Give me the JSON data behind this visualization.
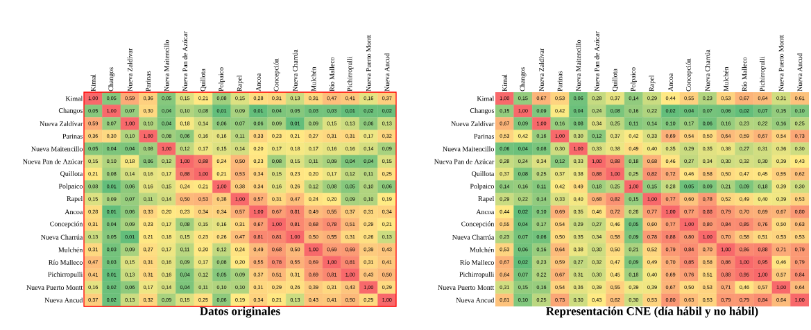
{
  "chart_data": [
    {
      "type": "heatmap",
      "title": "Datos originales",
      "categories": [
        "Kimal",
        "Changos",
        "Nueva Zaldívar",
        "Parinas",
        "Nueva Maitencillo",
        "Nueva Pan de Azúcar",
        "Quillota",
        "Polpaico",
        "Rapel",
        "Ancoa",
        "Concepción",
        "Nueva Charrúa",
        "Mulchén",
        "Río Malleco",
        "Pichirropulli",
        "Nueva Puerto Montt",
        "Nueva Ancud"
      ],
      "y_categories": [
        "Kimal",
        "Changos",
        "Nueva Zaldívar",
        "Parinas",
        "Nueva Maitencillo",
        "Nueva Pan de Azúcar",
        "Quillota",
        "Polpaico",
        "Rapel",
        "Ancoa",
        "Concepción",
        "Nueva Charrúa",
        "Mulchén",
        "Río Malleco",
        "Pichirropulli",
        "Nueva Puerto Montt",
        "Nueva Ancud"
      ],
      "cells": [
        [
          1.0,
          0.05,
          0.59,
          0.36,
          0.05,
          0.15,
          0.21,
          0.08,
          0.15,
          0.28,
          0.31,
          0.13,
          0.31,
          0.47,
          0.41,
          0.16,
          0.37
        ],
        [
          0.05,
          1.0,
          0.07,
          0.3,
          0.04,
          0.1,
          0.08,
          0.01,
          0.09,
          0.01,
          0.04,
          0.05,
          0.03,
          0.03,
          0.01,
          0.02,
          0.02
        ],
        [
          0.59,
          0.07,
          1.0,
          0.1,
          0.04,
          0.18,
          0.14,
          0.06,
          0.07,
          0.06,
          0.09,
          0.01,
          0.09,
          0.15,
          0.13,
          0.06,
          0.13
        ],
        [
          0.36,
          0.3,
          0.1,
          1.0,
          0.08,
          0.06,
          0.16,
          0.16,
          0.11,
          0.33,
          0.23,
          0.21,
          0.27,
          0.31,
          0.31,
          0.17,
          0.32
        ],
        [
          0.05,
          0.04,
          0.04,
          0.08,
          1.0,
          0.12,
          0.17,
          0.15,
          0.14,
          0.2,
          0.17,
          0.18,
          0.17,
          0.16,
          0.16,
          0.14,
          0.09
        ],
        [
          0.15,
          0.1,
          0.18,
          0.06,
          0.12,
          1.0,
          0.88,
          0.24,
          0.5,
          0.23,
          0.08,
          0.15,
          0.11,
          0.09,
          0.04,
          0.04,
          0.15
        ],
        [
          0.21,
          0.08,
          0.14,
          0.16,
          0.17,
          0.88,
          1.0,
          0.21,
          0.53,
          0.34,
          0.15,
          0.23,
          0.2,
          0.17,
          0.12,
          0.11,
          0.25
        ],
        [
          0.08,
          0.01,
          0.06,
          0.16,
          0.15,
          0.24,
          0.21,
          1.0,
          0.38,
          0.34,
          0.16,
          0.26,
          0.12,
          0.08,
          0.05,
          0.1,
          0.06
        ],
        [
          0.15,
          0.09,
          0.07,
          0.11,
          0.14,
          0.5,
          0.53,
          0.38,
          1.0,
          0.57,
          0.31,
          0.47,
          0.24,
          0.2,
          0.09,
          0.1,
          0.19
        ],
        [
          0.28,
          0.01,
          0.06,
          0.33,
          0.2,
          0.23,
          0.34,
          0.34,
          0.57,
          1.0,
          0.67,
          0.81,
          0.49,
          0.55,
          0.37,
          0.31,
          0.34
        ],
        [
          0.31,
          0.04,
          0.09,
          0.23,
          0.17,
          0.08,
          0.15,
          0.16,
          0.31,
          0.67,
          1.0,
          0.81,
          0.68,
          0.78,
          0.51,
          0.29,
          0.21
        ],
        [
          0.13,
          0.05,
          0.01,
          0.21,
          0.18,
          0.15,
          0.23,
          0.26,
          0.47,
          0.81,
          0.81,
          1.0,
          0.5,
          0.55,
          0.31,
          0.26,
          0.13
        ],
        [
          0.31,
          0.03,
          0.09,
          0.27,
          0.17,
          0.11,
          0.2,
          0.12,
          0.24,
          0.49,
          0.68,
          0.5,
          1.0,
          0.69,
          0.69,
          0.39,
          0.43
        ],
        [
          0.47,
          0.03,
          0.15,
          0.31,
          0.16,
          0.09,
          0.17,
          0.08,
          0.2,
          0.55,
          0.78,
          0.55,
          0.69,
          1.0,
          0.81,
          0.31,
          0.41
        ],
        [
          0.41,
          0.01,
          0.13,
          0.31,
          0.16,
          0.04,
          0.12,
          0.05,
          0.09,
          0.37,
          0.51,
          0.31,
          0.69,
          0.81,
          1.0,
          0.43,
          0.5
        ],
        [
          0.16,
          0.02,
          0.06,
          0.17,
          0.14,
          0.04,
          0.11,
          0.1,
          0.1,
          0.31,
          0.29,
          0.26,
          0.39,
          0.31,
          0.43,
          1.0,
          0.29
        ],
        [
          0.37,
          0.02,
          0.13,
          0.32,
          0.09,
          0.15,
          0.25,
          0.06,
          0.19,
          0.34,
          0.21,
          0.13,
          0.43,
          0.41,
          0.5,
          0.29,
          1.0
        ]
      ],
      "cell_labels": [
        [
          "1,00",
          "0,05",
          "0,59",
          "0,36",
          "0,05",
          "0,15",
          "0,21",
          "0,08",
          "0,15",
          "0,28",
          "0,31",
          "0,13",
          "0,31",
          "0,47",
          "0,41",
          "0,16",
          "0,37"
        ],
        [
          "0,05",
          "1,00",
          "0,07",
          "0,30",
          "0,04",
          "0,10",
          "0,08",
          "0,01",
          "0,09",
          "0,01",
          "0,04",
          "0,05",
          "0,03",
          "0,03",
          "0,01",
          "0,02",
          "0,02"
        ],
        [
          "0,59",
          "0,07",
          "1,00",
          "0,10",
          "0,04",
          "0,18",
          "0,14",
          "0,06",
          "0,07",
          "0,06",
          "0,09",
          "0,01",
          "0,09",
          "0,15",
          "0,13",
          "0,06",
          "0,13"
        ],
        [
          "0,36",
          "0,30",
          "0,10",
          "1,00",
          "0,08",
          "0,06",
          "0,16",
          "0,16",
          "0,11",
          "0,33",
          "0,23",
          "0,21",
          "0,27",
          "0,31",
          "0,31",
          "0,17",
          "0,32"
        ],
        [
          "0,05",
          "0,04",
          "0,04",
          "0,08",
          "1,00",
          "0,12",
          "0,17",
          "0,15",
          "0,14",
          "0,20",
          "0,17",
          "0,18",
          "0,17",
          "0,16",
          "0,16",
          "0,14",
          "0,09"
        ],
        [
          "0,15",
          "0,10",
          "0,18",
          "0,06",
          "0,12",
          "1,00",
          "0,88",
          "0,24",
          "0,50",
          "0,23",
          "0,08",
          "0,15",
          "0,11",
          "0,09",
          "0,04",
          "0,04",
          "0,15"
        ],
        [
          "0,21",
          "0,08",
          "0,14",
          "0,16",
          "0,17",
          "0,88",
          "1,00",
          "0,21",
          "0,53",
          "0,34",
          "0,15",
          "0,23",
          "0,20",
          "0,17",
          "0,12",
          "0,11",
          "0,25"
        ],
        [
          "0,08",
          "0,01",
          "0,06",
          "0,16",
          "0,15",
          "0,24",
          "0,21",
          "1,00",
          "0,38",
          "0,34",
          "0,16",
          "0,26",
          "0,12",
          "0,08",
          "0,05",
          "0,10",
          "0,06"
        ],
        [
          "0,15",
          "0,09",
          "0,07",
          "0,11",
          "0,14",
          "0,50",
          "0,53",
          "0,38",
          "1,00",
          "0,57",
          "0,31",
          "0,47",
          "0,24",
          "0,20",
          "0,09",
          "0,10",
          "0,19"
        ],
        [
          "0,28",
          "0,01",
          "0,06",
          "0,33",
          "0,20",
          "0,23",
          "0,34",
          "0,34",
          "0,57",
          "1,00",
          "0,67",
          "0,81",
          "0,49",
          "0,55",
          "0,37",
          "0,31",
          "0,34"
        ],
        [
          "0,31",
          "0,04",
          "0,09",
          "0,23",
          "0,17",
          "0,08",
          "0,15",
          "0,16",
          "0,31",
          "0,67",
          "1,00",
          "0,81",
          "0,68",
          "0,78",
          "0,51",
          "0,29",
          "0,21"
        ],
        [
          "0,13",
          "0,05",
          "0,01",
          "0,21",
          "0,18",
          "0,15",
          "0,23",
          "0,26",
          "0,47",
          "0,81",
          "0,81",
          "1,00",
          "0,50",
          "0,55",
          "0,31",
          "0,26",
          "0,13"
        ],
        [
          "0,31",
          "0,03",
          "0,09",
          "0,27",
          "0,17",
          "0,11",
          "0,20",
          "0,12",
          "0,24",
          "0,49",
          "0,68",
          "0,50",
          "1,00",
          "0,69",
          "0,69",
          "0,39",
          "0,43"
        ],
        [
          "0,47",
          "0,03",
          "0,15",
          "0,31",
          "0,16",
          "0,09",
          "0,17",
          "0,08",
          "0,20",
          "0,55",
          "0,78",
          "0,55",
          "0,69",
          "1,00",
          "0,81",
          "0,31",
          "0,41"
        ],
        [
          "0,41",
          "0,01",
          "0,13",
          "0,31",
          "0,16",
          "0,04",
          "0,12",
          "0,05",
          "0,09",
          "0,37",
          "0,51",
          "0,31",
          "0,69",
          "0,81",
          "1,00",
          "0,43",
          "0,50"
        ],
        [
          "0,16",
          "0,02",
          "0,06",
          "0,17",
          "0,14",
          "0,04",
          "0,11",
          "0,10",
          "0,10",
          "0,31",
          "0,29",
          "0,26",
          "0,39",
          "0,31",
          "0,43",
          "1,00",
          "0,29"
        ],
        [
          "0,37",
          "0,02",
          "0,13",
          "0,32",
          "0,09",
          "0,15",
          "0,25",
          "0,06",
          "0,19",
          "0,34",
          "0,21",
          "0,13",
          "0,43",
          "0,41",
          "0,50",
          "0,29",
          "1,00"
        ]
      ]
    },
    {
      "type": "heatmap",
      "title": "Representación CNE (día hábil y no hábil)",
      "categories": [
        "Kimal",
        "Changos",
        "Nueva Zaldívar",
        "Parinas",
        "Nueva Maitencillo",
        "Nueva Pan de Azúcar",
        "Quillota",
        "Polpaico",
        "Rapel",
        "Ancoa",
        "Concepción",
        "Nueva Charrúa",
        "Mulchén",
        "Río Malleco",
        "Pichirropulli",
        "Nueva Puerto Montt",
        "Nueva Ancud"
      ],
      "y_categories": [
        "Kimal",
        "Changos",
        "Nueva Zaldívar",
        "Parinas",
        "Nueva Maitencillo",
        "Nueva Pan de Azúcar",
        "Quillota",
        "Polpaico",
        "Rapel",
        "Ancoa",
        "Concepción",
        "Nueva Charrúa",
        "Mulchén",
        "Río Malleco",
        "Pichirropulli",
        "Nueva Puerto Montt",
        "Nueva Ancud"
      ],
      "cells": [
        [
          1.0,
          0.15,
          0.67,
          0.53,
          0.06,
          0.28,
          0.37,
          0.14,
          0.29,
          0.44,
          0.55,
          0.23,
          0.53,
          0.67,
          0.64,
          0.31,
          0.61
        ],
        [
          0.15,
          1.0,
          0.09,
          0.42,
          0.04,
          0.24,
          0.08,
          0.16,
          0.22,
          0.02,
          0.04,
          0.07,
          0.06,
          0.02,
          0.07,
          0.15,
          0.1
        ],
        [
          0.67,
          0.09,
          1.0,
          0.16,
          0.08,
          0.34,
          0.25,
          0.11,
          0.14,
          0.1,
          0.17,
          0.06,
          0.16,
          0.23,
          0.22,
          0.16,
          0.25
        ],
        [
          0.53,
          0.42,
          0.16,
          1.0,
          0.3,
          0.12,
          0.37,
          0.42,
          0.33,
          0.69,
          0.54,
          0.5,
          0.64,
          0.59,
          0.67,
          0.54,
          0.73
        ],
        [
          0.06,
          0.04,
          0.08,
          0.3,
          1.0,
          0.33,
          0.38,
          0.49,
          0.4,
          0.35,
          0.29,
          0.35,
          0.38,
          0.27,
          0.31,
          0.36,
          0.3
        ],
        [
          0.28,
          0.24,
          0.34,
          0.12,
          0.33,
          1.0,
          0.88,
          0.18,
          0.68,
          0.46,
          0.27,
          0.34,
          0.3,
          0.32,
          0.3,
          0.39,
          0.43
        ],
        [
          0.37,
          0.08,
          0.25,
          0.37,
          0.38,
          0.88,
          1.0,
          0.25,
          0.82,
          0.72,
          0.46,
          0.58,
          0.5,
          0.47,
          0.45,
          0.55,
          0.62
        ],
        [
          0.14,
          0.16,
          0.11,
          0.42,
          0.49,
          0.18,
          0.25,
          1.0,
          0.15,
          0.28,
          0.05,
          0.09,
          0.21,
          0.09,
          0.18,
          0.39,
          0.3
        ],
        [
          0.29,
          0.22,
          0.14,
          0.33,
          0.4,
          0.68,
          0.82,
          0.15,
          1.0,
          0.77,
          0.6,
          0.78,
          0.52,
          0.49,
          0.4,
          0.39,
          0.53
        ],
        [
          0.44,
          0.02,
          0.1,
          0.69,
          0.35,
          0.46,
          0.72,
          0.28,
          0.77,
          1.0,
          0.77,
          0.88,
          0.79,
          0.7,
          0.69,
          0.67,
          0.8
        ],
        [
          0.55,
          0.04,
          0.17,
          0.54,
          0.29,
          0.27,
          0.46,
          0.05,
          0.6,
          0.77,
          1.0,
          0.8,
          0.84,
          0.85,
          0.76,
          0.5,
          0.63
        ],
        [
          0.23,
          0.07,
          0.06,
          0.5,
          0.35,
          0.34,
          0.58,
          0.09,
          0.78,
          0.88,
          0.8,
          1.0,
          0.7,
          0.58,
          0.51,
          0.53,
          0.53
        ],
        [
          0.53,
          0.06,
          0.16,
          0.64,
          0.38,
          0.3,
          0.5,
          0.21,
          0.52,
          0.79,
          0.84,
          0.7,
          1.0,
          0.86,
          0.88,
          0.71,
          0.79
        ],
        [
          0.67,
          0.02,
          0.23,
          0.59,
          0.27,
          0.32,
          0.47,
          0.09,
          0.49,
          0.7,
          0.85,
          0.58,
          0.86,
          1.0,
          0.95,
          0.46,
          0.79
        ],
        [
          0.64,
          0.07,
          0.22,
          0.67,
          0.31,
          0.3,
          0.45,
          0.18,
          0.4,
          0.69,
          0.76,
          0.51,
          0.88,
          0.95,
          1.0,
          0.57,
          0.84
        ],
        [
          0.31,
          0.15,
          0.16,
          0.54,
          0.36,
          0.39,
          0.55,
          0.39,
          0.39,
          0.67,
          0.5,
          0.53,
          0.71,
          0.46,
          0.57,
          1.0,
          0.64
        ],
        [
          0.61,
          0.1,
          0.25,
          0.73,
          0.3,
          0.43,
          0.62,
          0.3,
          0.53,
          0.8,
          0.63,
          0.53,
          0.79,
          0.79,
          0.84,
          0.64,
          1.0
        ]
      ],
      "cell_labels": [
        [
          "1,00",
          "0,15",
          "0,67",
          "0,53",
          "0,06",
          "0,28",
          "0,37",
          "0,14",
          "0,29",
          "0,44",
          "0,55",
          "0,23",
          "0,53",
          "0,67",
          "0,64",
          "0,31",
          "0,61"
        ],
        [
          "0,15",
          "1,00",
          "0,09",
          "0,42",
          "0,04",
          "0,24",
          "0,08",
          "0,16",
          "0,22",
          "0,02",
          "0,04",
          "0,07",
          "0,06",
          "0,02",
          "0,07",
          "0,15",
          "0,10"
        ],
        [
          "0,67",
          "0,09",
          "1,00",
          "0,16",
          "0,08",
          "0,34",
          "0,25",
          "0,11",
          "0,14",
          "0,10",
          "0,17",
          "0,06",
          "0,16",
          "0,23",
          "0,22",
          "0,16",
          "0,25"
        ],
        [
          "0,53",
          "0,42",
          "0,16",
          "1,00",
          "0,30",
          "0,12",
          "0,37",
          "0,42",
          "0,33",
          "0,69",
          "0,54",
          "0,50",
          "0,64",
          "0,59",
          "0,67",
          "0,54",
          "0,73"
        ],
        [
          "0,06",
          "0,04",
          "0,08",
          "0,30",
          "1,00",
          "0,33",
          "0,38",
          "0,49",
          "0,40",
          "0,35",
          "0,29",
          "0,35",
          "0,38",
          "0,27",
          "0,31",
          "0,36",
          "0,30"
        ],
        [
          "0,28",
          "0,24",
          "0,34",
          "0,12",
          "0,33",
          "1,00",
          "0,88",
          "0,18",
          "0,68",
          "0,46",
          "0,27",
          "0,34",
          "0,30",
          "0,32",
          "0,30",
          "0,39",
          "0,43"
        ],
        [
          "0,37",
          "0,08",
          "0,25",
          "0,37",
          "0,38",
          "0,88",
          "1,00",
          "0,25",
          "0,82",
          "0,72",
          "0,46",
          "0,58",
          "0,50",
          "0,47",
          "0,45",
          "0,55",
          "0,62"
        ],
        [
          "0,14",
          "0,16",
          "0,11",
          "0,42",
          "0,49",
          "0,18",
          "0,25",
          "1,00",
          "0,15",
          "0,28",
          "0,05",
          "0,09",
          "0,21",
          "0,09",
          "0,18",
          "0,39",
          "0,30"
        ],
        [
          "0,29",
          "0,22",
          "0,14",
          "0,33",
          "0,40",
          "0,68",
          "0,82",
          "0,15",
          "1,00",
          "0,77",
          "0,60",
          "0,78",
          "0,52",
          "0,49",
          "0,40",
          "0,39",
          "0,53"
        ],
        [
          "0,44",
          "0,02",
          "0,10",
          "0,69",
          "0,35",
          "0,46",
          "0,72",
          "0,28",
          "0,77",
          "1,00",
          "0,77",
          "0,88",
          "0,79",
          "0,70",
          "0,69",
          "0,67",
          "0,80"
        ],
        [
          "0,55",
          "0,04",
          "0,17",
          "0,54",
          "0,29",
          "0,27",
          "0,46",
          "0,05",
          "0,60",
          "0,77",
          "1,00",
          "0,80",
          "0,84",
          "0,85",
          "0,76",
          "0,50",
          "0,63"
        ],
        [
          "0,23",
          "0,07",
          "0,06",
          "0,50",
          "0,35",
          "0,34",
          "0,58",
          "0,09",
          "0,78",
          "0,88",
          "0,80",
          "1,00",
          "0,70",
          "0,58",
          "0,51",
          "0,53",
          "0,53"
        ],
        [
          "0,53",
          "0,06",
          "0,16",
          "0,64",
          "0,38",
          "0,30",
          "0,50",
          "0,21",
          "0,52",
          "0,79",
          "0,84",
          "0,70",
          "1,00",
          "0,86",
          "0,88",
          "0,71",
          "0,79"
        ],
        [
          "0,67",
          "0,02",
          "0,23",
          "0,59",
          "0,27",
          "0,32",
          "0,47",
          "0,09",
          "0,49",
          "0,70",
          "0,85",
          "0,58",
          "0,86",
          "1,00",
          "0,95",
          "0,46",
          "0,79"
        ],
        [
          "0,64",
          "0,07",
          "0,22",
          "0,67",
          "0,31",
          "0,30",
          "0,45",
          "0,18",
          "0,40",
          "0,69",
          "0,76",
          "0,51",
          "0,88",
          "0,95",
          "1,00",
          "0,57",
          "0,84"
        ],
        [
          "0,31",
          "0,15",
          "0,16",
          "0,54",
          "0,36",
          "0,39",
          "0,55",
          "0,39",
          "0,39",
          "0,67",
          "0,50",
          "0,53",
          "0,71",
          "0,46",
          "0,57",
          "1,00",
          "0,64"
        ],
        [
          "0,61",
          "0,10",
          "0,25",
          "0,73",
          "0,30",
          "0,43",
          "0,62",
          "0,30",
          "0,53",
          "0,80",
          "0,63",
          "0,53",
          "0,79",
          "0,79",
          "0,84",
          "0,64",
          "1,00"
        ]
      ]
    }
  ]
}
